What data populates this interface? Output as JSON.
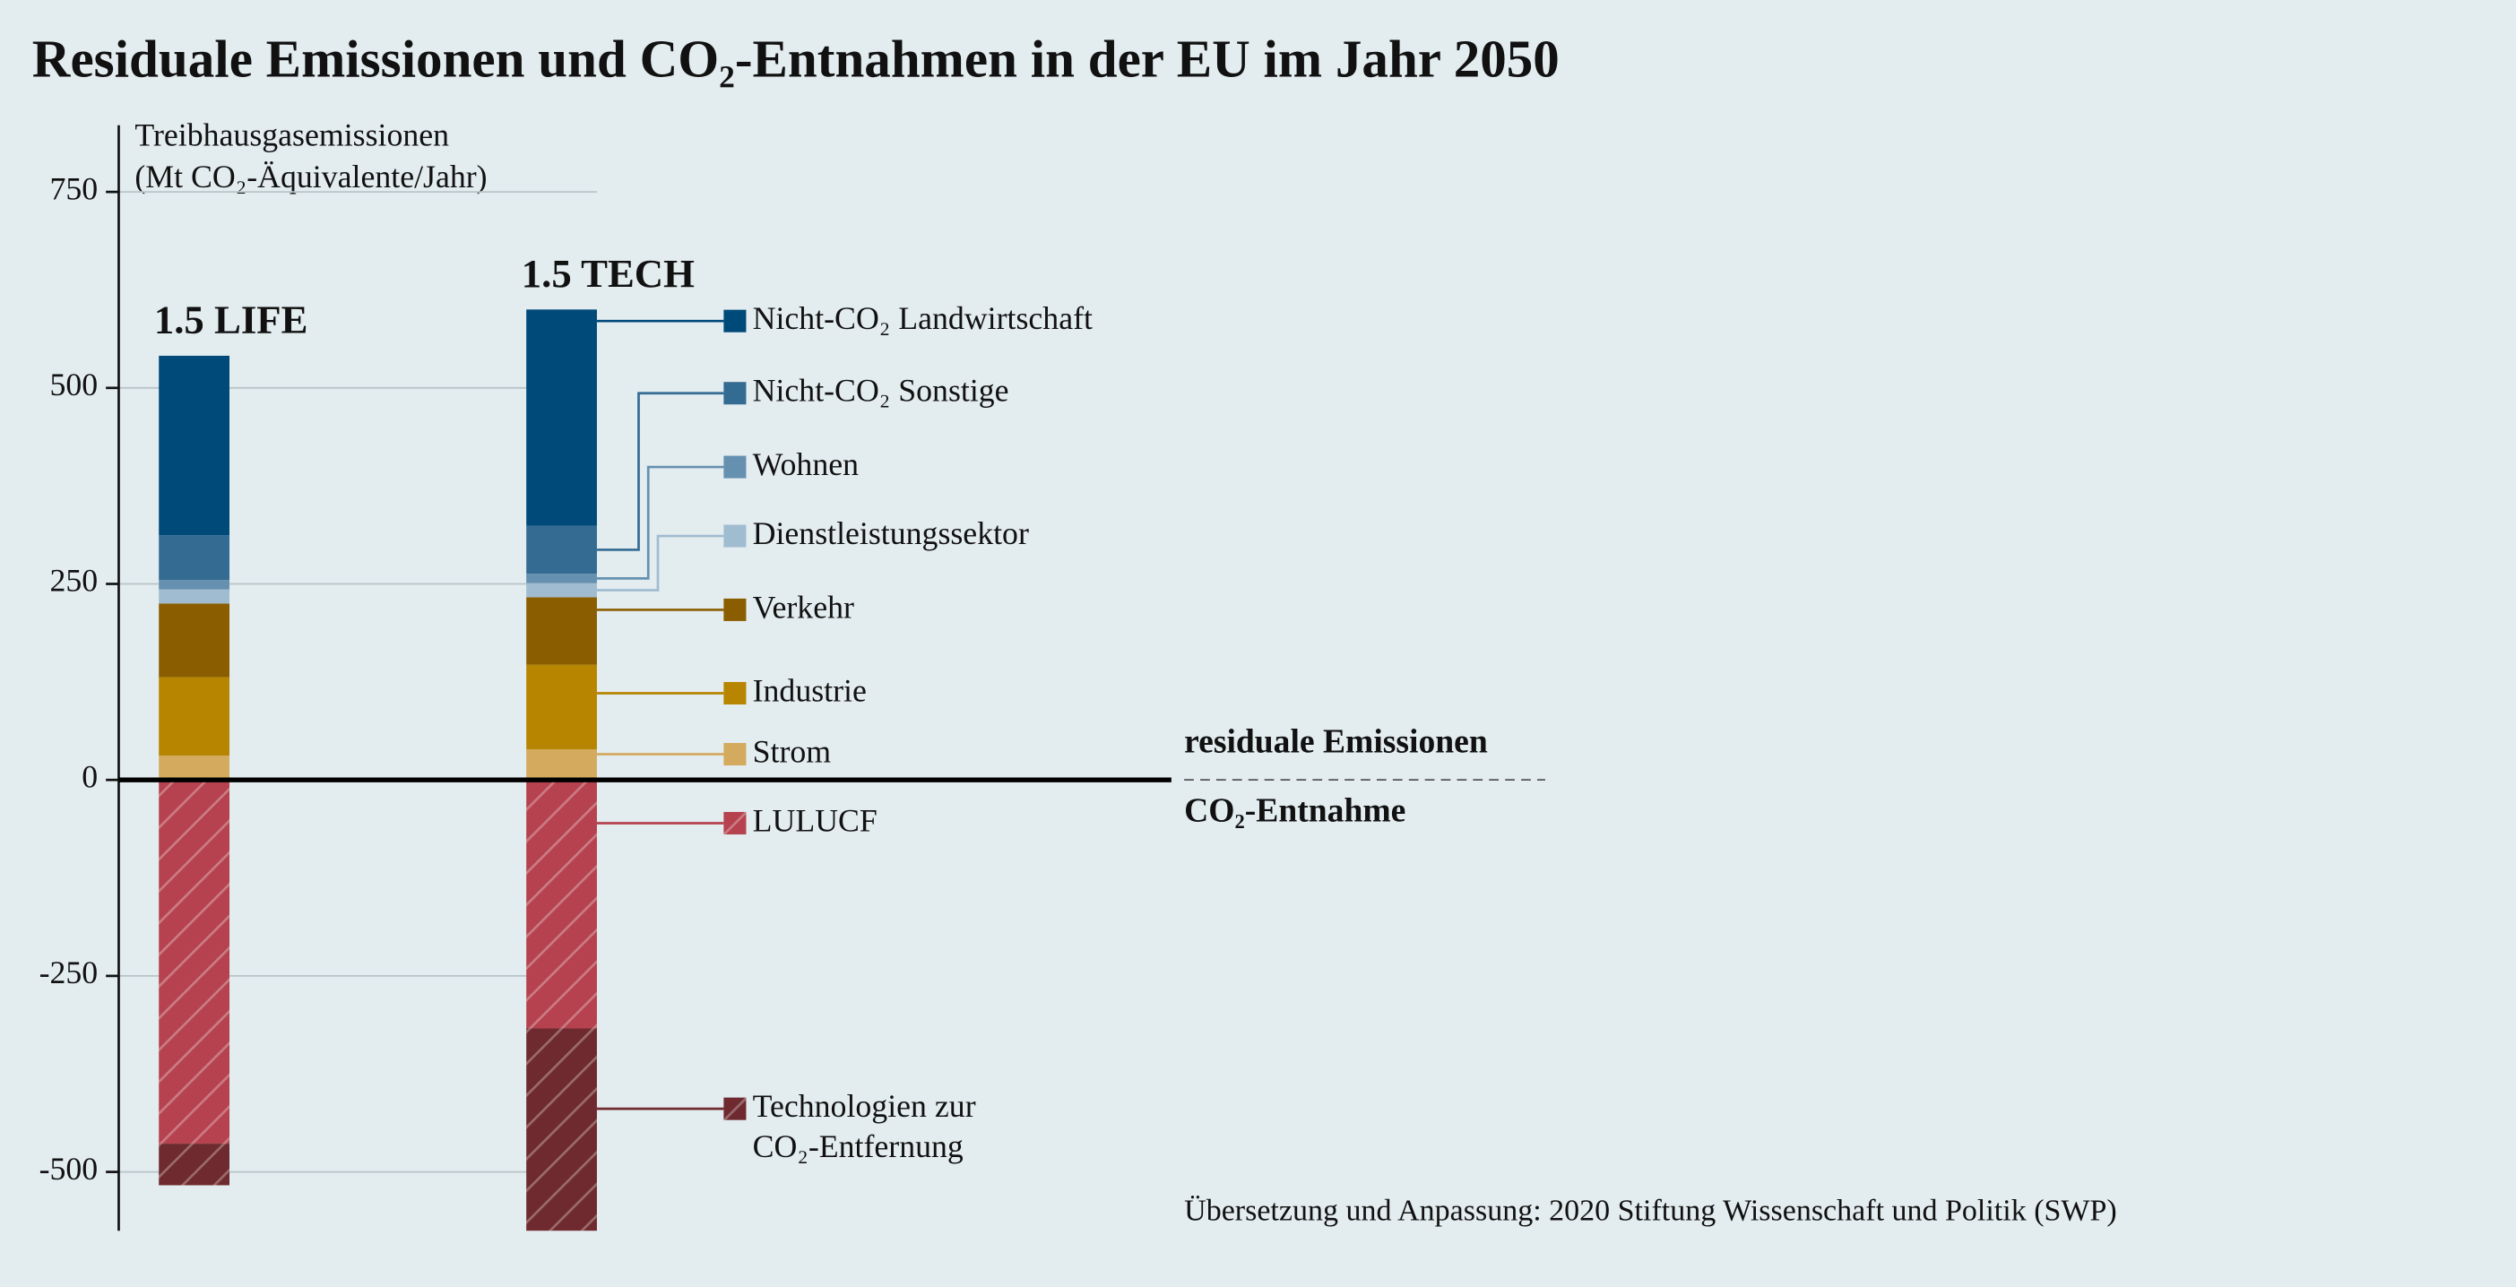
{
  "chart_data": {
    "type": "bar",
    "stacked": true,
    "title": "Residuale Emissionen und CO₂-Entnahmen in der EU im Jahr 2050",
    "y_label": [
      "Treibhausgasemissionen",
      "(Mt CO₂-Äquivalente/Jahr)"
    ],
    "categories": [
      "1.5 LIFE",
      "1.5 TECH"
    ],
    "series": [
      {
        "name": "Strom",
        "color": "#d4aa5f",
        "values": [
          31,
          39
        ]
      },
      {
        "name": "Industrie",
        "color": "#b78500",
        "values": [
          100,
          108
        ]
      },
      {
        "name": "Verkehr",
        "color": "#8a5e00",
        "values": [
          94,
          86
        ]
      },
      {
        "name": "Dienstleistungssektor",
        "color": "#a0bcd0",
        "values": [
          18,
          18
        ]
      },
      {
        "name": "Wohnen",
        "color": "#6690b0",
        "values": [
          12,
          12
        ]
      },
      {
        "name": "Nicht-CO₂ Sonstige",
        "color": "#336b93",
        "values": [
          57,
          61
        ]
      },
      {
        "name": "Nicht-CO₂ Landwirtschaft",
        "color": "#004a7a",
        "values": [
          229,
          276
        ]
      },
      {
        "name": "LULUCF",
        "color": "#b5424e",
        "values": [
          -464,
          -317
        ],
        "hatch": true
      },
      {
        "name": "Technologien zur CO₂-Entfernung",
        "color": "#6e2a2e",
        "values": [
          -53,
          -258
        ],
        "hatch": true
      }
    ],
    "ylim": [
      -575,
      835
    ],
    "yticks": [
      -500,
      -250,
      0,
      250,
      500,
      750
    ],
    "grid": true,
    "annotations": [
      "residuale Emissionen",
      "CO₂-Entnahme"
    ],
    "source": "Übersetzung und Anpassung: 2020 Stiftung Wissenschaft und Politik (SWP)"
  }
}
